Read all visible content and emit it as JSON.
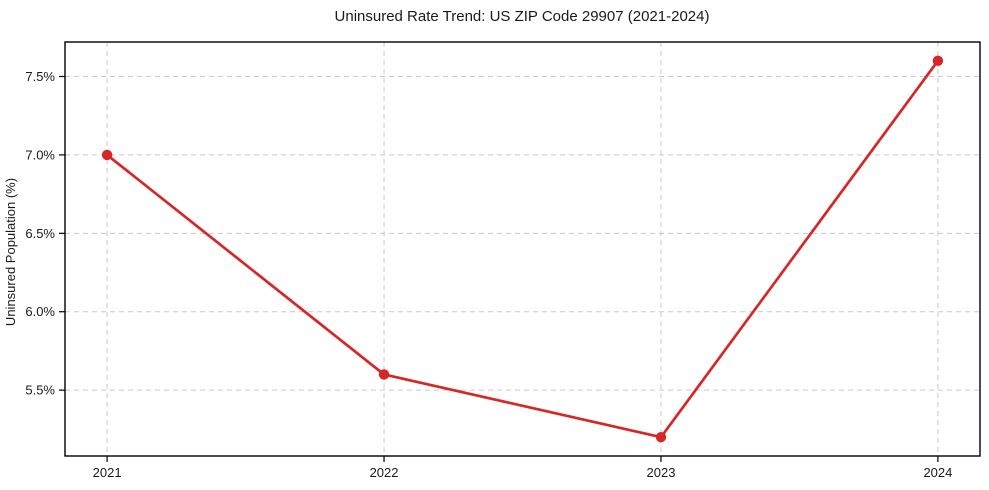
{
  "chart_data": {
    "type": "line",
    "title": "Uninsured Rate Trend: US ZIP Code 29907 (2021-2024)",
    "xlabel": "",
    "ylabel": "Uninsured Population (%)",
    "categories": [
      "2021",
      "2022",
      "2023",
      "2024"
    ],
    "values": [
      7.0,
      5.6,
      5.2,
      7.6
    ],
    "ytick_values": [
      5.5,
      6.0,
      6.5,
      7.0,
      7.5
    ],
    "ytick_labels": [
      "5.5%",
      "6.0%",
      "6.5%",
      "7.0%",
      "7.5%"
    ],
    "ylim": [
      5.08,
      7.72
    ],
    "xlim_index": [
      -0.152,
      3.152
    ],
    "grid": "both-dashed",
    "legend": "none",
    "colors": {
      "line": "#d62728",
      "marker": "#d62728",
      "gridline": "#c9c9c9",
      "text": "#1a1a1a",
      "background": "#ffffff"
    }
  }
}
